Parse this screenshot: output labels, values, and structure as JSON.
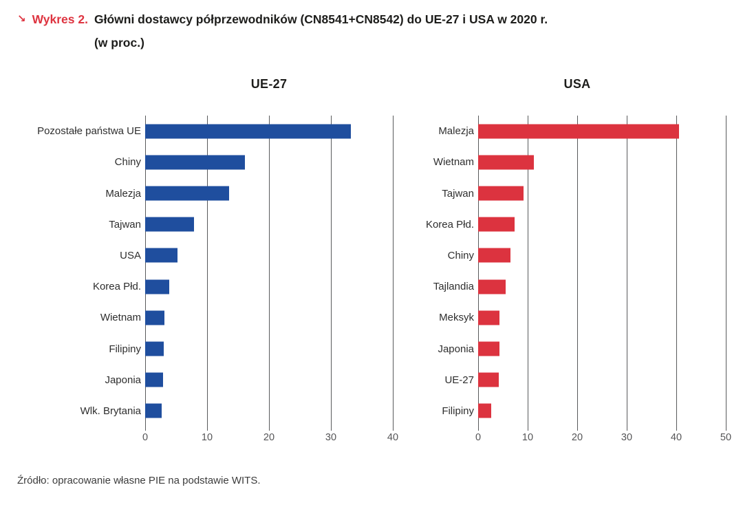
{
  "title": {
    "marker": "↘",
    "label": "Wykres 2.",
    "line1": "Główni dostawcy półprzewodników (CN8541+CN8542) do UE-27 i USA w 2020 r.",
    "line2": "(w proc.)"
  },
  "source": {
    "text": "Źródło: opracowanie własne PIE na podstawie WITS."
  },
  "colors": {
    "accent_red": "#de3440",
    "bar_blue": "#1f4e9e",
    "bar_red": "#dc333f",
    "gridline": "#58595b"
  },
  "chart_data": [
    {
      "type": "bar",
      "orientation": "horizontal",
      "title": "UE-27",
      "bar_color": "#1f4e9e",
      "categories": [
        "Pozostałe państwa UE",
        "Chiny",
        "Malezja",
        "Tajwan",
        "USA",
        "Korea Płd.",
        "Wietnam",
        "Filipiny",
        "Japonia",
        "Wlk. Brytania"
      ],
      "values": [
        33.2,
        16.1,
        13.5,
        7.9,
        5.2,
        3.9,
        3.1,
        3.0,
        2.9,
        2.7
      ],
      "xlabel": "",
      "ylabel": "",
      "xlim": [
        0,
        40
      ],
      "xticks": [
        0,
        10,
        20,
        30,
        40
      ],
      "grid": "vertical"
    },
    {
      "type": "bar",
      "orientation": "horizontal",
      "title": "USA",
      "bar_color": "#dc333f",
      "categories": [
        "Malezja",
        "Wietnam",
        "Tajwan",
        "Korea Płd.",
        "Chiny",
        "Tajlandia",
        "Meksyk",
        "Japonia",
        "UE-27",
        "Filipiny"
      ],
      "values": [
        40.5,
        11.3,
        9.2,
        7.3,
        6.5,
        5.5,
        4.3,
        4.3,
        4.2,
        2.6
      ],
      "xlabel": "",
      "ylabel": "",
      "xlim": [
        0,
        50
      ],
      "xticks": [
        0,
        10,
        20,
        30,
        40,
        50
      ],
      "grid": "vertical"
    }
  ]
}
